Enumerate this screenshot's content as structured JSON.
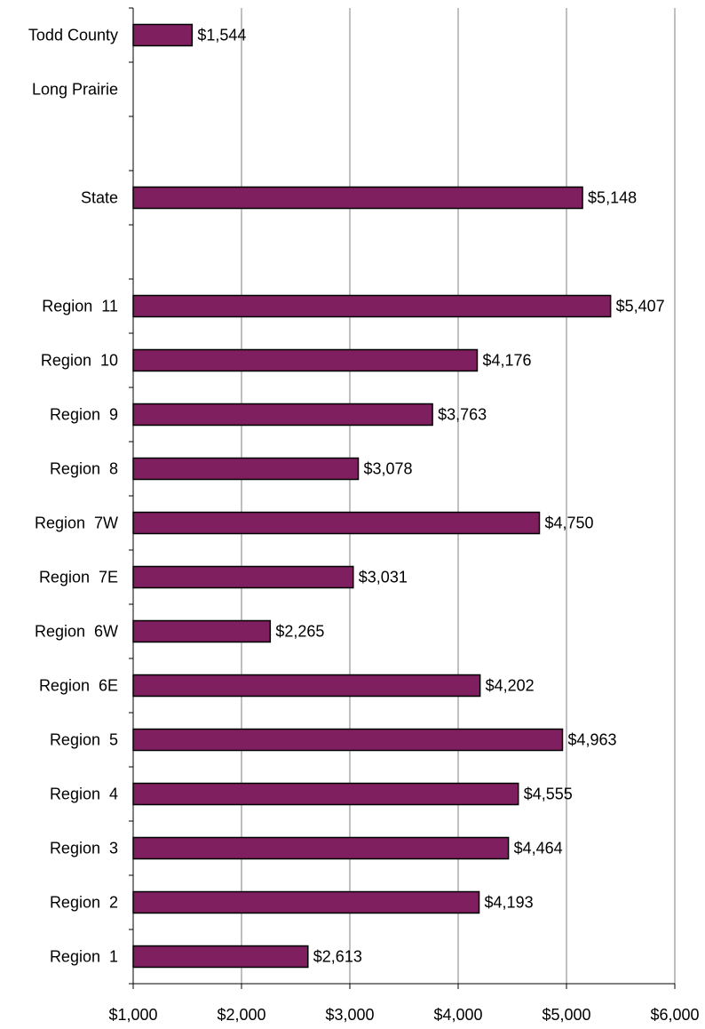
{
  "chart_data": {
    "type": "bar",
    "orientation": "horizontal",
    "categories": [
      "Todd County",
      "Long Prairie",
      "",
      "State",
      "",
      "Region  11",
      "Region  10",
      "Region  9",
      "Region  8",
      "Region  7W",
      "Region  7E",
      "Region  6W",
      "Region  6E",
      "Region  5",
      "Region  4",
      "Region  3",
      "Region  2",
      "Region  1"
    ],
    "values": [
      1544,
      null,
      null,
      5148,
      null,
      5407,
      4176,
      3763,
      3078,
      4750,
      3031,
      2265,
      4202,
      4963,
      4555,
      4464,
      4193,
      2613
    ],
    "value_labels": [
      "$1,544",
      "",
      "",
      "$5,148",
      "",
      "$5,407",
      "$4,176",
      "$3,763",
      "$3,078",
      "$4,750",
      "$3,031",
      "$2,265",
      "$4,202",
      "$4,963",
      "$4,555",
      "$4,464",
      "$4,193",
      "$2,613"
    ],
    "xlim": [
      1000,
      6000
    ],
    "x_ticks": [
      1000,
      2000,
      3000,
      4000,
      5000,
      6000
    ],
    "x_tick_labels": [
      "$1,000",
      "$2,000",
      "$3,000",
      "$4,000",
      "$5,000",
      "$6,000"
    ],
    "title": "",
    "xlabel": "",
    "ylabel": "",
    "grid": "vertical",
    "legend": "none",
    "colors": {
      "bar": "#7f1f5f",
      "bar_stroke": "#000000",
      "grid": "#808080",
      "axis": "#000000"
    }
  }
}
